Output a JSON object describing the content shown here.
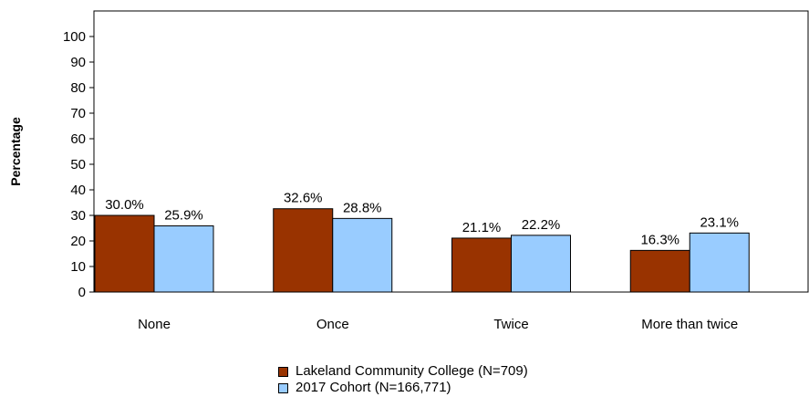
{
  "chart_data": {
    "type": "bar",
    "ylabel": "Percentage",
    "xlabel": "",
    "ylim": [
      0,
      110
    ],
    "yticks": [
      0,
      10,
      20,
      30,
      40,
      50,
      60,
      70,
      80,
      90,
      100
    ],
    "categories": [
      "None",
      "Once",
      "Twice",
      "More than twice"
    ],
    "series": [
      {
        "name": "Lakeland Community College (N=709)",
        "color": "#993300",
        "values": [
          30.0,
          32.6,
          21.1,
          16.3
        ],
        "labels": [
          "30.0%",
          "32.6%",
          "21.1%",
          "16.3%"
        ]
      },
      {
        "name": "2017 Cohort (N=166,771)",
        "color": "#99CCFF",
        "values": [
          25.9,
          28.8,
          22.2,
          23.1
        ],
        "labels": [
          "25.9%",
          "28.8%",
          "22.2%",
          "23.1%"
        ]
      }
    ],
    "grid": false,
    "legend_position": "bottom"
  }
}
